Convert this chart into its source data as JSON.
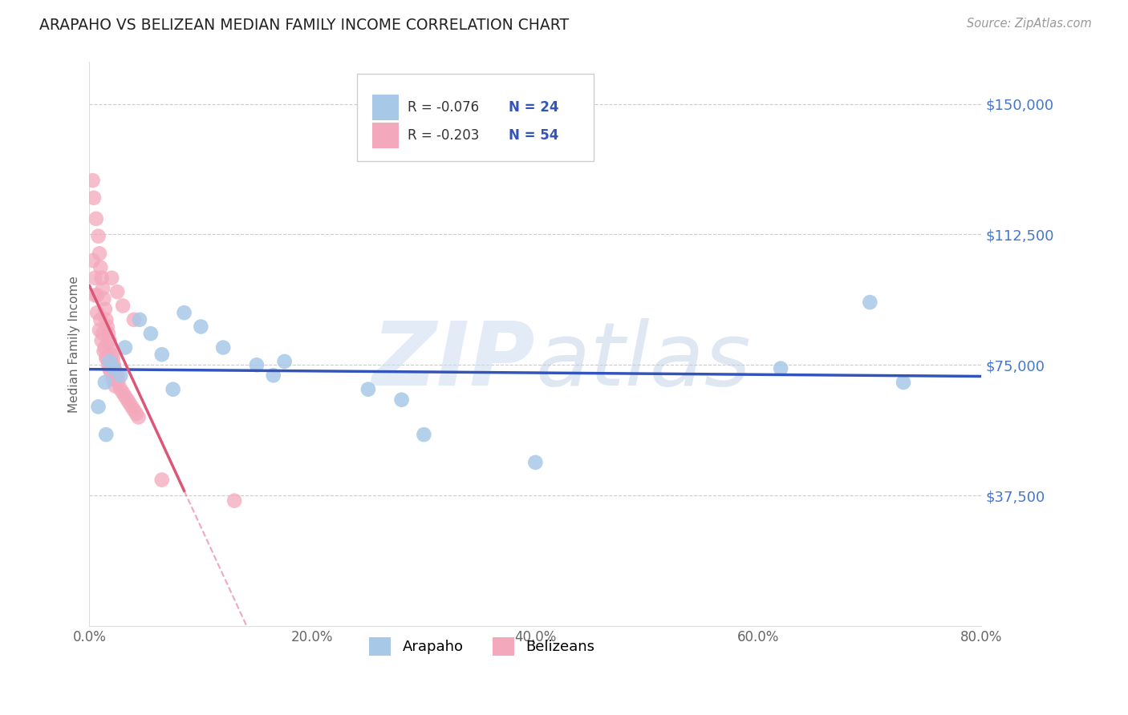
{
  "title": "ARAPAHO VS BELIZEAN MEDIAN FAMILY INCOME CORRELATION CHART",
  "source": "Source: ZipAtlas.com",
  "ylabel": "Median Family Income",
  "yticks": [
    37500,
    75000,
    112500,
    150000
  ],
  "xmin": 0.0,
  "xmax": 0.8,
  "ymin": 0,
  "ymax": 162000,
  "legend_r1": "R = -0.076",
  "legend_n1": "N = 24",
  "legend_r2": "R = -0.203",
  "legend_n2": "N = 54",
  "watermark_zip": "ZIP",
  "watermark_atlas": "atlas",
  "arapaho_color": "#a8c8e8",
  "belizean_color": "#f4a8bc",
  "line_arapaho_color": "#3355bb",
  "line_belizean_color": "#dd5577",
  "legend_text_color": "#333333",
  "legend_n_color": "#3355bb",
  "ytick_color": "#4477cc",
  "arapaho_x": [
    0.008,
    0.014,
    0.018,
    0.022,
    0.028,
    0.032,
    0.045,
    0.055,
    0.065,
    0.075,
    0.085,
    0.1,
    0.12,
    0.15,
    0.165,
    0.175,
    0.25,
    0.28,
    0.3,
    0.4,
    0.62,
    0.7,
    0.73,
    0.015
  ],
  "arapaho_y": [
    63000,
    70000,
    76000,
    74000,
    72000,
    80000,
    88000,
    84000,
    78000,
    68000,
    90000,
    86000,
    80000,
    75000,
    72000,
    76000,
    68000,
    65000,
    55000,
    47000,
    74000,
    93000,
    70000,
    55000
  ],
  "belizean_x": [
    0.003,
    0.004,
    0.006,
    0.008,
    0.009,
    0.01,
    0.011,
    0.012,
    0.013,
    0.014,
    0.015,
    0.016,
    0.017,
    0.018,
    0.019,
    0.02,
    0.021,
    0.022,
    0.024,
    0.025,
    0.026,
    0.028,
    0.03,
    0.032,
    0.034,
    0.036,
    0.038,
    0.04,
    0.042,
    0.044,
    0.005,
    0.007,
    0.009,
    0.011,
    0.013,
    0.015,
    0.017,
    0.019,
    0.021,
    0.023,
    0.003,
    0.005,
    0.007,
    0.01,
    0.012,
    0.014,
    0.016,
    0.018,
    0.065,
    0.13,
    0.02,
    0.025,
    0.03,
    0.04
  ],
  "belizean_y": [
    128000,
    123000,
    117000,
    112000,
    107000,
    103000,
    100000,
    97000,
    94000,
    91000,
    88000,
    86000,
    84000,
    82000,
    80000,
    78000,
    77000,
    75000,
    73000,
    72000,
    70000,
    68000,
    67000,
    66000,
    65000,
    64000,
    63000,
    62000,
    61000,
    60000,
    95000,
    90000,
    85000,
    82000,
    79000,
    77000,
    75000,
    73000,
    71000,
    69000,
    105000,
    100000,
    95000,
    88000,
    84000,
    80000,
    77000,
    74000,
    42000,
    36000,
    100000,
    96000,
    92000,
    88000
  ]
}
